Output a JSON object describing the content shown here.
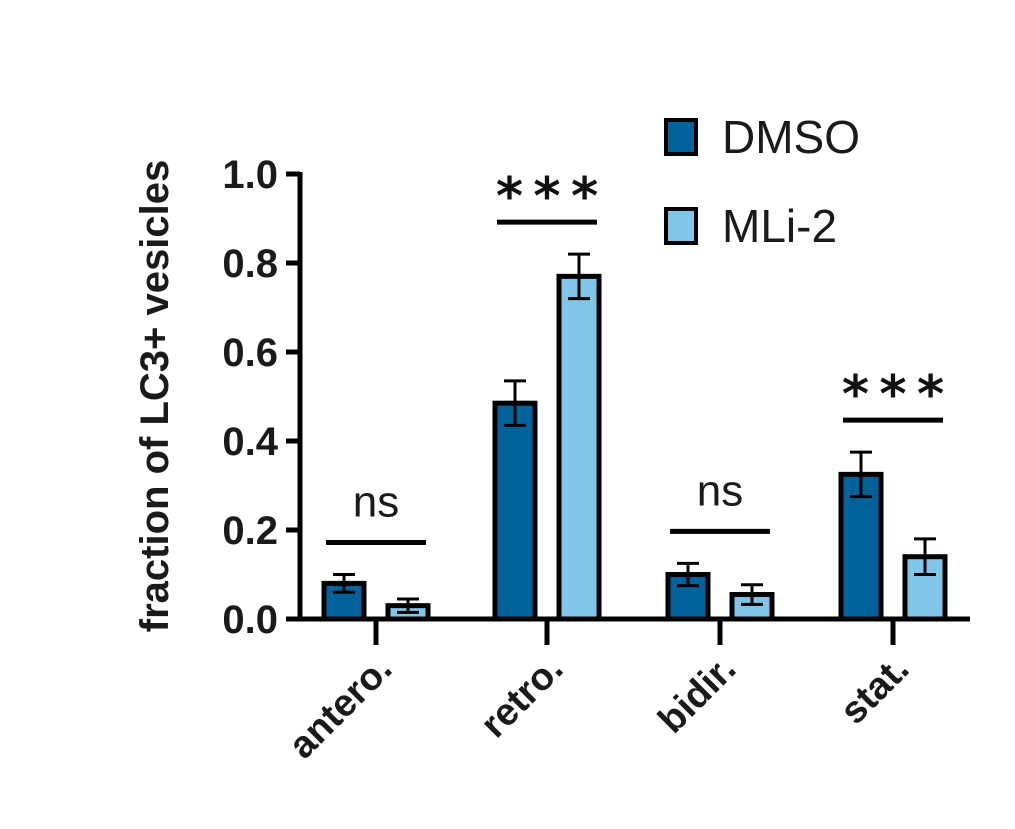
{
  "chart_data": {
    "type": "bar",
    "title": "",
    "xlabel": "",
    "ylabel": "fraction of LC3+ vesicles",
    "ylim": [
      0,
      1.0
    ],
    "yticks": [
      "0.0",
      "0.2",
      "0.4",
      "0.6",
      "0.8",
      "1.0"
    ],
    "categories": [
      "antero.",
      "retro.",
      "bidir.",
      "stat."
    ],
    "series": [
      {
        "name": "DMSO",
        "color": "#00629b",
        "values": [
          0.08,
          0.485,
          0.1,
          0.325
        ],
        "errors": [
          0.02,
          0.05,
          0.025,
          0.05
        ]
      },
      {
        "name": "MLi-2",
        "color": "#80c6e8",
        "values": [
          0.03,
          0.77,
          0.055,
          0.14
        ],
        "errors": [
          0.015,
          0.05,
          0.022,
          0.04
        ]
      }
    ],
    "significance": [
      "ns",
      "***",
      "ns",
      "***"
    ],
    "legend": {
      "position": "top-right",
      "entries": [
        "DMSO",
        "MLi-2"
      ]
    },
    "grid": false
  }
}
